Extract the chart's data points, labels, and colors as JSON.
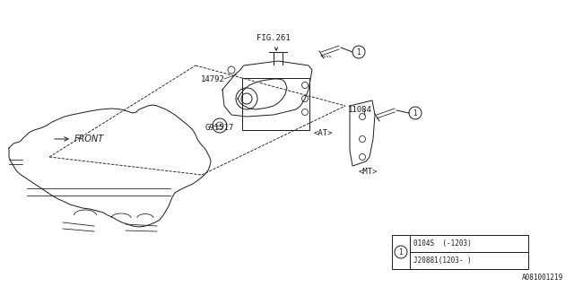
{
  "bg_color": "#ffffff",
  "line_color": "#1a1a1a",
  "fig_width": 6.4,
  "fig_height": 3.2,
  "dpi": 100,
  "watermark": "A081001219",
  "labels": {
    "fig261": "FIG.261",
    "part14792": "14792",
    "partG91517": "G91517",
    "partAT": "<AT>",
    "part11084": "11084",
    "partMT": "<MT>",
    "front": "FRONT",
    "legend_row1": "0104S  (-1203)",
    "legend_row2": "J20881(1203- )"
  }
}
